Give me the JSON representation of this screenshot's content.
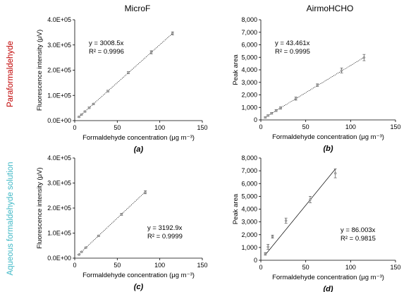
{
  "colors": {
    "row1_title": "#c00000",
    "row2_title": "#3fb8c6",
    "point_fill": "#aaaaaa"
  },
  "column_titles": [
    "MicroF",
    "AirmoHCHO"
  ],
  "row_titles": [
    "Paraformaldehyde",
    "Aqueous formaldehyde solution"
  ],
  "chart_data": [
    {
      "type": "scatter",
      "panel": "(a)",
      "xlabel": "Formaldehyde concentration (μg m⁻³)",
      "ylabel": "Fluorescence intensity (μV)",
      "xlim": [
        0,
        150
      ],
      "ylim": [
        0,
        400000
      ],
      "xticks": [
        0,
        50,
        100,
        150
      ],
      "xtick_labels": [
        "0",
        "50",
        "100",
        "150"
      ],
      "yticks": [
        0,
        100000,
        200000,
        300000,
        400000
      ],
      "ytick_labels": [
        "0.0E+00",
        "1.0E+05",
        "2.0E+05",
        "3.0E+05",
        "4.0E+05"
      ],
      "x": [
        5,
        8,
        12,
        17,
        22,
        39,
        63,
        90,
        115
      ],
      "y": [
        15000,
        24000,
        36000,
        51000,
        66000,
        117000,
        190000,
        271000,
        346000
      ],
      "y_err": [
        2000,
        2000,
        2500,
        3000,
        3000,
        3500,
        4000,
        6000,
        6000
      ],
      "trendline_slope": 3008.5,
      "trendline_x": [
        5,
        115
      ],
      "trend_style": "dotted",
      "equation": "y = 3008.5x",
      "r2": "R² = 0.9996",
      "equation_pos": "upper-left"
    },
    {
      "type": "scatter",
      "panel": "(b)",
      "xlabel": "Formaldehyde concentration (μg m⁻³)",
      "ylabel": "Peak area",
      "xlim": [
        0,
        150
      ],
      "ylim": [
        0,
        8000
      ],
      "xticks": [
        0,
        50,
        100,
        150
      ],
      "xtick_labels": [
        "0",
        "50",
        "100",
        "150"
      ],
      "yticks": [
        0,
        1000,
        2000,
        3000,
        4000,
        5000,
        6000,
        7000,
        8000
      ],
      "ytick_labels": [
        "0",
        "1,000",
        "2,000",
        "3,000",
        "4,000",
        "5,000",
        "6,000",
        "7,000",
        "8,000"
      ],
      "x": [
        5,
        8,
        12,
        17,
        22,
        39,
        63,
        90,
        115
      ],
      "y": [
        200,
        350,
        530,
        750,
        950,
        1700,
        2780,
        3950,
        4980
      ],
      "y_err": [
        50,
        60,
        70,
        80,
        90,
        120,
        100,
        200,
        250
      ],
      "trendline_slope": 43.461,
      "trendline_x": [
        5,
        115
      ],
      "trend_style": "dotted",
      "equation": "y = 43.461x",
      "r2": "R² = 0.9995",
      "equation_pos": "upper-left"
    },
    {
      "type": "scatter",
      "panel": "(c)",
      "xlabel": "Formaldehyde concentration (μg m⁻³)",
      "ylabel": "Fluorescence intensity (μV)",
      "xlim": [
        0,
        150
      ],
      "ylim": [
        0,
        400000
      ],
      "xticks": [
        0,
        50,
        100,
        150
      ],
      "xtick_labels": [
        "0",
        "50",
        "100",
        "150"
      ],
      "yticks": [
        0,
        100000,
        200000,
        300000,
        400000
      ],
      "ytick_labels": [
        "0.0E+00",
        "1.0E+05",
        "2.0E+05",
        "3.0E+05",
        "4.0E+05"
      ],
      "x": [
        5,
        8,
        13,
        28,
        55,
        83
      ],
      "y": [
        14000,
        25000,
        42000,
        89000,
        175000,
        263000
      ],
      "y_err": [
        1500,
        2000,
        2500,
        3000,
        4000,
        6000
      ],
      "trendline_slope": 3192.9,
      "trendline_x": [
        4,
        83
      ],
      "trend_style": "dotted",
      "equation": "y = 3192.9x",
      "r2": "R² = 0.9999",
      "equation_pos": "lower-right"
    },
    {
      "type": "scatter",
      "panel": "(d)",
      "xlabel": "Formaldehyde concentration (μg m⁻³)",
      "ylabel": "Peak area",
      "xlim": [
        0,
        150
      ],
      "ylim": [
        0,
        8000
      ],
      "xticks": [
        0,
        50,
        100,
        150
      ],
      "xtick_labels": [
        "0",
        "50",
        "100",
        "150"
      ],
      "yticks": [
        0,
        1000,
        2000,
        3000,
        4000,
        5000,
        6000,
        7000,
        8000
      ],
      "ytick_labels": [
        "0",
        "1,000",
        "2,000",
        "3,000",
        "4,000",
        "5,000",
        "6,000",
        "7,000",
        "8,000"
      ],
      "x": [
        5,
        8,
        13,
        28,
        55,
        83
      ],
      "y": [
        500,
        1050,
        1850,
        3100,
        4750,
        6800
      ],
      "y_err": [
        100,
        200,
        120,
        200,
        250,
        350
      ],
      "trendline_slope": 86.003,
      "trendline_x": [
        5,
        83
      ],
      "trend_style": "solid",
      "equation": "y = 86.003x",
      "r2": "R² = 0.9815",
      "equation_pos": "lower-right"
    }
  ]
}
